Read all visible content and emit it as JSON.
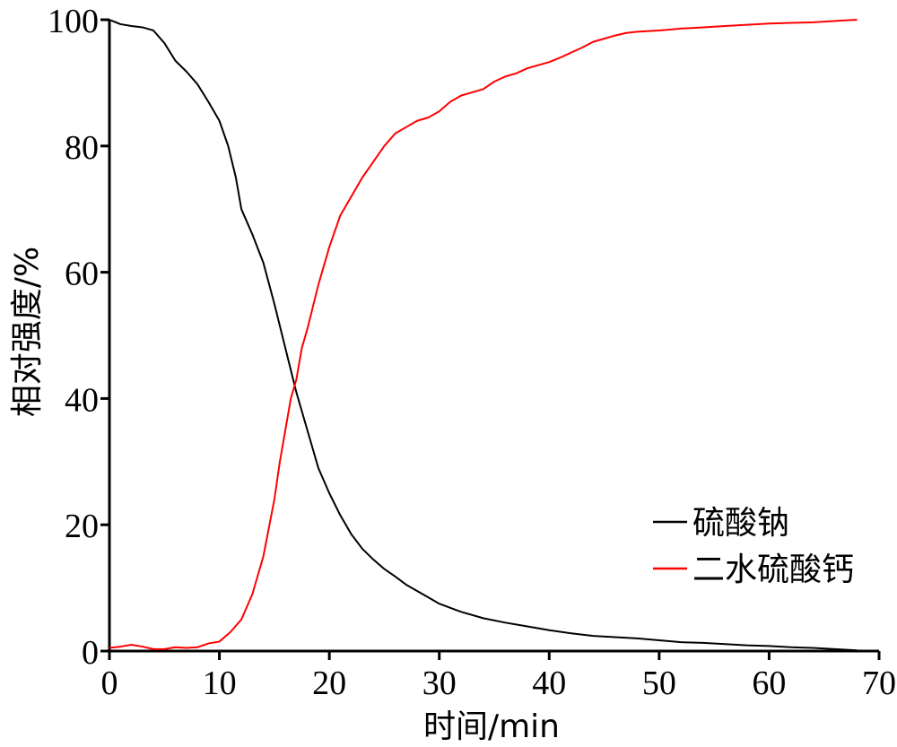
{
  "chart_data": {
    "type": "line",
    "xlabel": "时间/min",
    "ylabel": "相对强度/%",
    "xlim": [
      0,
      70
    ],
    "ylim": [
      0,
      100
    ],
    "xticks": [
      0,
      10,
      20,
      30,
      40,
      50,
      60,
      70
    ],
    "yticks": [
      0,
      20,
      40,
      60,
      80,
      100
    ],
    "grid": false,
    "legend_position": "bottom-right",
    "series": [
      {
        "name": "硫酸钠",
        "color": "#000000",
        "points": [
          [
            0,
            100
          ],
          [
            1,
            99.3
          ],
          [
            2,
            99
          ],
          [
            3,
            98.8
          ],
          [
            4,
            98.3
          ],
          [
            5,
            96.3
          ],
          [
            6,
            93.5
          ],
          [
            7,
            91.8
          ],
          [
            8,
            89.8
          ],
          [
            9,
            87
          ],
          [
            10,
            84
          ],
          [
            10.8,
            80
          ],
          [
            11.5,
            75
          ],
          [
            12,
            70
          ],
          [
            13,
            66
          ],
          [
            14,
            61.5
          ],
          [
            15,
            55
          ],
          [
            16,
            48
          ],
          [
            17,
            41
          ],
          [
            18,
            35
          ],
          [
            19,
            29
          ],
          [
            20,
            25
          ],
          [
            21,
            21.5
          ],
          [
            22,
            18.5
          ],
          [
            23,
            16.2
          ],
          [
            24,
            14.5
          ],
          [
            25,
            13
          ],
          [
            26,
            11.8
          ],
          [
            27,
            10.5
          ],
          [
            28,
            9.5
          ],
          [
            29,
            8.5
          ],
          [
            30,
            7.5
          ],
          [
            32,
            6.2
          ],
          [
            34,
            5.2
          ],
          [
            36,
            4.5
          ],
          [
            38,
            3.9
          ],
          [
            40,
            3.3
          ],
          [
            42,
            2.8
          ],
          [
            44,
            2.4
          ],
          [
            46,
            2.2
          ],
          [
            48,
            2
          ],
          [
            50,
            1.7
          ],
          [
            52,
            1.4
          ],
          [
            54,
            1.3
          ],
          [
            56,
            1.1
          ],
          [
            58,
            0.9
          ],
          [
            60,
            0.8
          ],
          [
            62,
            0.6
          ],
          [
            64,
            0.5
          ],
          [
            66,
            0.3
          ],
          [
            68,
            0.1
          ]
        ]
      },
      {
        "name": "二水硫酸钙",
        "color": "#ff0000",
        "points": [
          [
            0,
            0.5
          ],
          [
            1,
            0.7
          ],
          [
            2,
            1
          ],
          [
            3,
            0.7
          ],
          [
            4,
            0.3
          ],
          [
            5,
            0.3
          ],
          [
            6,
            0.6
          ],
          [
            7,
            0.5
          ],
          [
            8,
            0.6
          ],
          [
            9,
            1.2
          ],
          [
            10,
            1.5
          ],
          [
            11,
            3
          ],
          [
            12,
            5
          ],
          [
            13,
            9
          ],
          [
            14,
            15
          ],
          [
            15,
            24
          ],
          [
            15.5,
            30
          ],
          [
            16,
            35
          ],
          [
            16.5,
            40
          ],
          [
            17,
            43
          ],
          [
            17.5,
            48
          ],
          [
            18,
            51
          ],
          [
            19,
            58
          ],
          [
            20,
            64
          ],
          [
            21,
            69
          ],
          [
            22,
            72
          ],
          [
            23,
            75
          ],
          [
            24,
            77.5
          ],
          [
            25,
            80
          ],
          [
            26,
            82
          ],
          [
            27,
            83
          ],
          [
            28,
            84
          ],
          [
            29,
            84.5
          ],
          [
            30,
            85.5
          ],
          [
            31,
            87
          ],
          [
            32,
            88
          ],
          [
            33,
            88.5
          ],
          [
            34,
            89
          ],
          [
            35,
            90.2
          ],
          [
            36,
            91
          ],
          [
            37,
            91.5
          ],
          [
            38,
            92.3
          ],
          [
            39,
            92.8
          ],
          [
            40,
            93.3
          ],
          [
            41,
            94
          ],
          [
            42,
            94.8
          ],
          [
            43,
            95.6
          ],
          [
            44,
            96.5
          ],
          [
            45,
            97
          ],
          [
            46,
            97.5
          ],
          [
            47,
            97.9
          ],
          [
            48,
            98.1
          ],
          [
            50,
            98.3
          ],
          [
            52,
            98.6
          ],
          [
            54,
            98.8
          ],
          [
            56,
            99
          ],
          [
            58,
            99.2
          ],
          [
            60,
            99.4
          ],
          [
            62,
            99.5
          ],
          [
            64,
            99.6
          ],
          [
            66,
            99.8
          ],
          [
            68,
            100
          ]
        ]
      }
    ]
  }
}
